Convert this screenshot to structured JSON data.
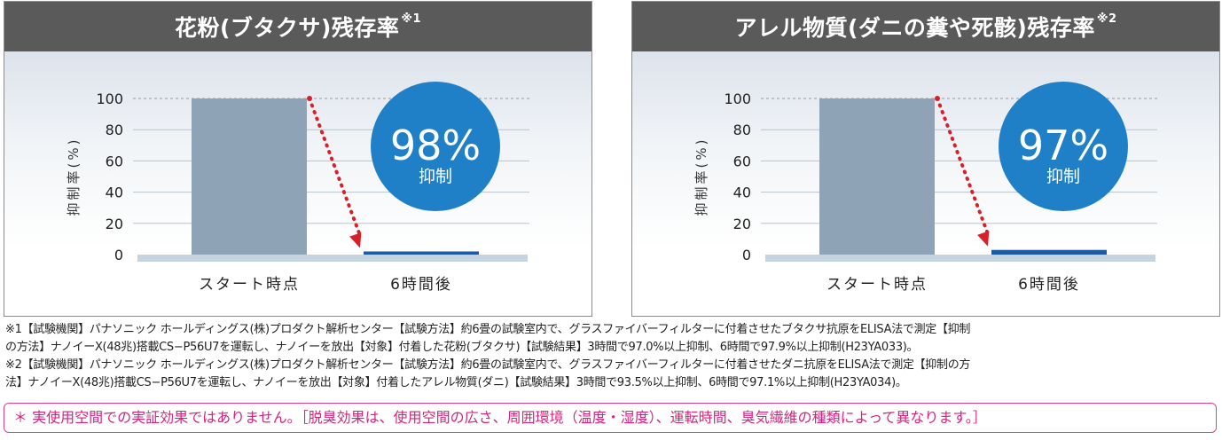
{
  "chart_data": [
    {
      "type": "bar",
      "title": "花粉(ブタクサ)残存率",
      "title_mark": "※1",
      "ylabel": "抑制率(%)",
      "yticks": [
        0,
        20,
        40,
        60,
        80,
        100
      ],
      "ylim": [
        0,
        100
      ],
      "categories": [
        "スタート時点",
        "6時間後"
      ],
      "values": [
        100,
        2
      ],
      "badge": {
        "value": "98%",
        "label": "抑制"
      },
      "colors": {
        "start_bar": "#8fa3b6",
        "after_bar": "#1a5aa8",
        "badge": "#1f80c8",
        "arrow": "#d8202a"
      }
    },
    {
      "type": "bar",
      "title": "アレル物質(ダニの糞や死骸)残存率",
      "title_mark": "※2",
      "ylabel": "抑制率(%)",
      "yticks": [
        0,
        20,
        40,
        60,
        80,
        100
      ],
      "ylim": [
        0,
        100
      ],
      "categories": [
        "スタート時点",
        "6時間後"
      ],
      "values": [
        100,
        3
      ],
      "badge": {
        "value": "97%",
        "label": "抑制"
      },
      "colors": {
        "start_bar": "#8fa3b6",
        "after_bar": "#1a5aa8",
        "badge": "#1f80c8",
        "arrow": "#d8202a"
      }
    }
  ],
  "footnotes": {
    "note1_line1": "※1【試験機関】パナソニック ホールディングス(株)プロダクト解析センター【試験方法】約6畳の試験室内で、グラスファイバーフィルターに付着させたブタクサ抗原をELISA法で測定【抑制",
    "note1_line2": "の方法】ナノイーX(48兆)搭載CS−P56U7を運転し、ナノイーを放出【対象】付着した花粉(ブタクサ)【試験結果】3時間で97.0%以上抑制、6時間で97.9%以上抑制(H23YA033)。",
    "note2_line1": "※2【試験機関】パナソニック ホールディングス(株)プロダクト解析センター【試験方法】約6畳の試験室内で、グラスファイバーフィルターに付着させたダニ抗原をELISA法で測定【抑制の方",
    "note2_line2": "法】ナノイーX(48兆)搭載CS−P56U7を運転し、ナノイーを放出【対象】付着したアレル物質(ダニ)【試験結果】3時間で93.5%以上抑制、6時間で97.1%以上抑制(H23YA034)。"
  },
  "notice": "＊ 実使用空間での実証効果ではありません。［脱臭効果は、使用空間の広さ、周囲環境（温度・湿度）、運転時間、臭気繊維の種類によって異なります。］"
}
